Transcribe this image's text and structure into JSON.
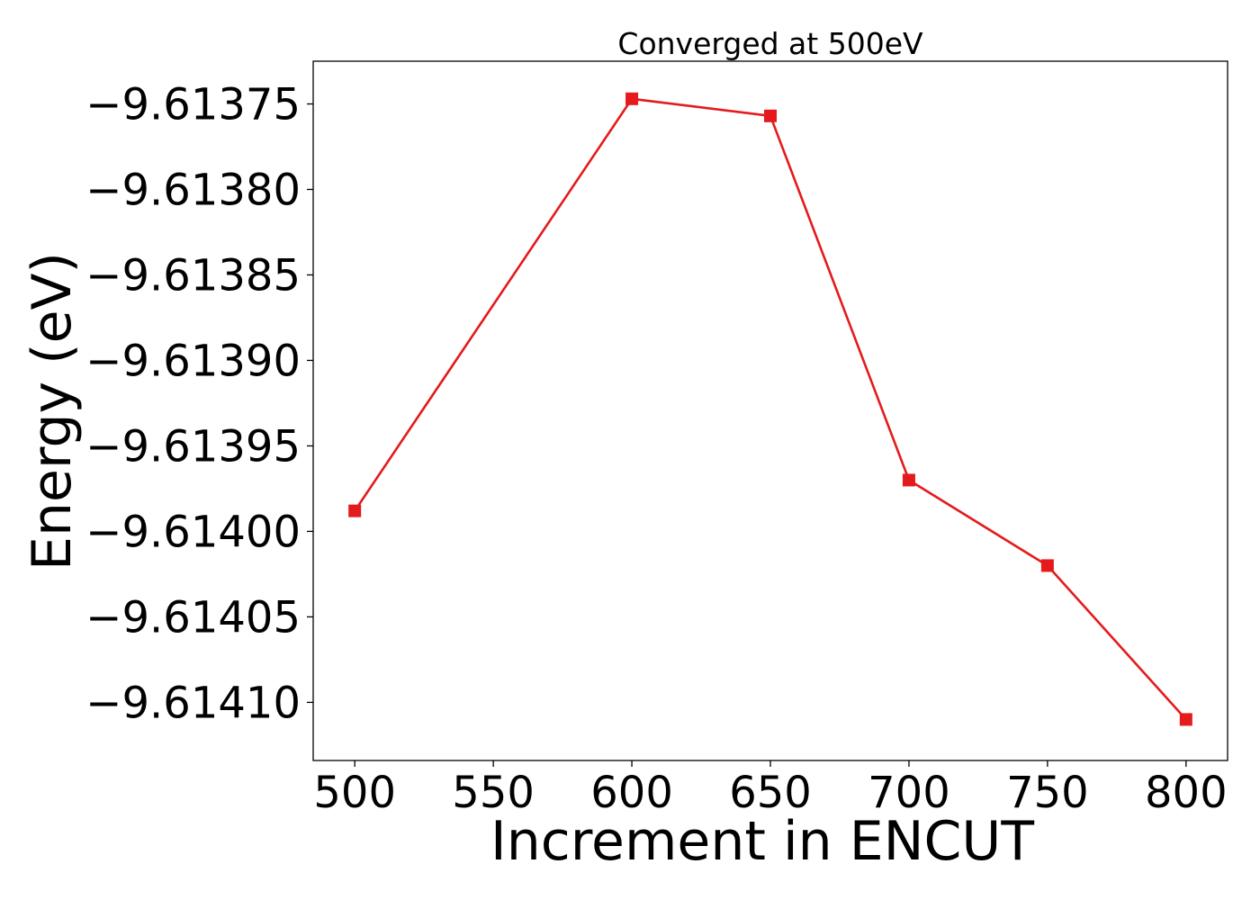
{
  "chart_data": {
    "type": "line",
    "title": "Converged at 500eV",
    "xlabel": "Increment in ENCUT",
    "ylabel": "Energy (eV)",
    "x": [
      500,
      600,
      650,
      700,
      750,
      800
    ],
    "series": [
      {
        "values": [
          -9.613988,
          -9.613747,
          -9.613757,
          -9.61397,
          -9.61402,
          -9.61411
        ],
        "color": "#e41a1c",
        "marker": "square"
      }
    ],
    "xlim": [
      485,
      815
    ],
    "ylim": [
      -9.614134,
      -9.613725
    ],
    "xticks": [
      500,
      550,
      600,
      650,
      700,
      750,
      800
    ],
    "xtick_labels": [
      "500",
      "550",
      "600",
      "650",
      "700",
      "750",
      "800"
    ],
    "yticks": [
      -9.61375,
      -9.6138,
      -9.61385,
      -9.6139,
      -9.61395,
      -9.614,
      -9.61405,
      -9.6141
    ],
    "ytick_labels": [
      "−9.61375",
      "−9.61380",
      "−9.61385",
      "−9.61390",
      "−9.61395",
      "−9.61400",
      "−9.61405",
      "−9.61410"
    ],
    "grid": false,
    "legend": "none"
  }
}
